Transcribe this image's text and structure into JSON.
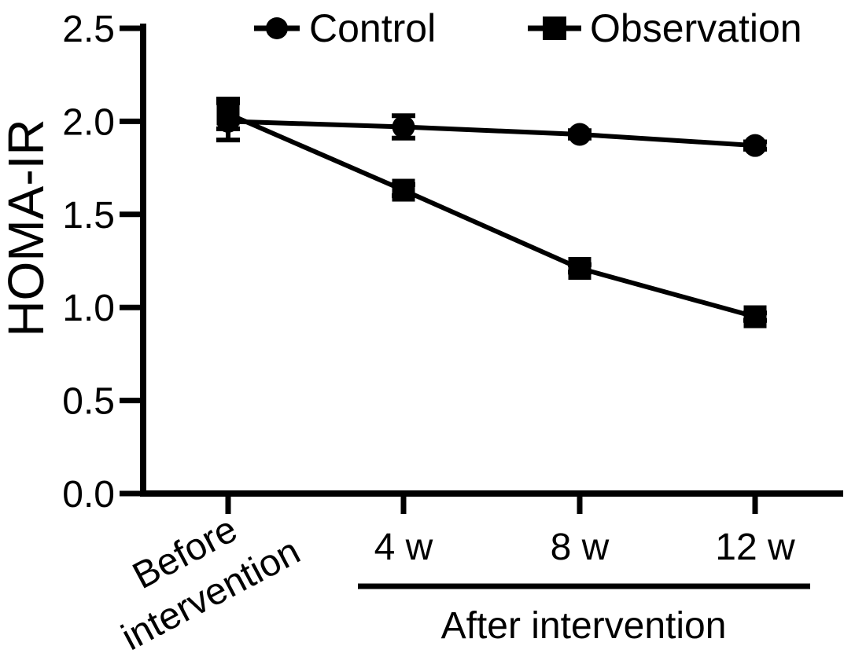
{
  "figure": {
    "background": "#ffffff",
    "foreground": "#000000"
  },
  "chart_data": {
    "type": "line",
    "title": "",
    "xlabel": "",
    "ylabel": "HOMA-IR",
    "x_group_label": "After intervention",
    "categories": [
      "Before intervention",
      "4 w",
      "8 w",
      "12 w"
    ],
    "y_ticks": [
      "0.0",
      "0.5",
      "1.0",
      "1.5",
      "2.0",
      "2.5"
    ],
    "ylim": [
      0,
      2.5
    ],
    "grid": false,
    "legend_position": "top",
    "line_color": "#000000",
    "series": [
      {
        "name": "Control",
        "marker": "circle",
        "values": [
          2.0,
          1.97,
          1.93,
          1.87
        ],
        "errors": [
          0.1,
          0.06,
          0.02,
          0.02
        ]
      },
      {
        "name": "Observation",
        "marker": "square",
        "values": [
          2.04,
          1.63,
          1.21,
          0.95
        ],
        "errors": [
          0.08,
          0.03,
          0.02,
          0.02
        ]
      }
    ]
  }
}
